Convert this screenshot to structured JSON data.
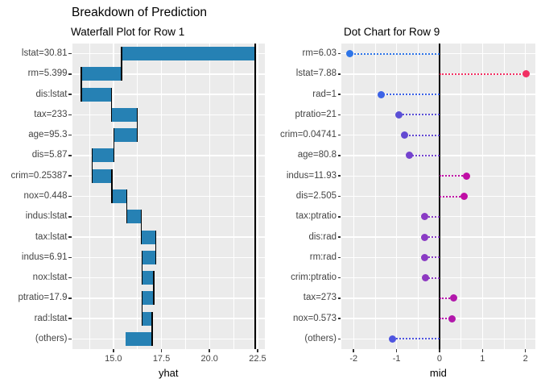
{
  "title": "Breakdown of Prediction",
  "colors": {
    "panel_background": "#ebebeb",
    "gridline": "#ffffff",
    "waterfall_bar": "#2681b4",
    "reference_line": "#000000",
    "axis_text": "#444444"
  },
  "chart_data": [
    {
      "type": "bar",
      "variant": "waterfall",
      "title": "Waterfall Plot for Row 1",
      "xlabel": "yhat",
      "categories": [
        "lstat=30.81",
        "rm=5.399",
        "dis:lstat",
        "tax=233",
        "age=95.3",
        "dis=5.87",
        "crim=0.25387",
        "nox=0.448",
        "indus:lstat",
        "tax:lstat",
        "indus=6.91",
        "nox:lstat",
        "ptratio=17.9",
        "rad:lstat",
        "(others)"
      ],
      "baseline": 22.38,
      "cumulative": [
        22.38,
        15.42,
        13.33,
        14.9,
        16.25,
        15.03,
        13.89,
        14.93,
        15.7,
        16.46,
        17.2,
        16.5,
        17.11,
        16.5,
        17.01,
        15.63
      ],
      "contributions": [
        -6.96,
        -2.09,
        1.57,
        1.35,
        -1.22,
        -1.14,
        1.04,
        0.77,
        0.76,
        0.74,
        -0.7,
        0.61,
        -0.61,
        0.51,
        -1.38
      ],
      "bar_color": "#2681b4",
      "baseline_line": 22.38,
      "xlim": [
        12.85,
        22.88
      ],
      "xticks": [
        15.0,
        17.5,
        20.0,
        22.5
      ],
      "xtick_labels": [
        "15.0",
        "17.5",
        "20.0",
        "22.5"
      ],
      "grid": true,
      "legend": "none"
    },
    {
      "type": "scatter",
      "variant": "dotplot",
      "title": "Dot Chart for Row 9",
      "xlabel": "mid",
      "categories": [
        "rm=6.03",
        "lstat=7.88",
        "rad=1",
        "ptratio=21",
        "crim=0.04741",
        "age=80.8",
        "indus=11.93",
        "dis=2.505",
        "tax:ptratio",
        "dis:rad",
        "rm:rad",
        "crim:ptratio",
        "tax=273",
        "nox=0.573",
        "(others)"
      ],
      "values": [
        -2.08,
        2.02,
        -1.36,
        -0.95,
        -0.81,
        -0.7,
        0.62,
        0.57,
        -0.34,
        -0.34,
        -0.34,
        -0.32,
        0.32,
        0.3,
        -1.09
      ],
      "point_colors": [
        "#2e75e8",
        "#f13063",
        "#3c63e6",
        "#5b50d6",
        "#6349d2",
        "#7443ce",
        "#c00fa5",
        "#c00fa5",
        "#8a3bc4",
        "#8a3bc4",
        "#8a3bc4",
        "#8e39c1",
        "#b218ab",
        "#b218ab",
        "#4f55e0"
      ],
      "vline": 0,
      "xlim": [
        -2.285,
        2.225
      ],
      "xticks": [
        -2,
        -1,
        0,
        1,
        2
      ],
      "xtick_labels": [
        "-2",
        "-1",
        "0",
        "1",
        "2"
      ],
      "grid": true,
      "legend": "none"
    }
  ]
}
